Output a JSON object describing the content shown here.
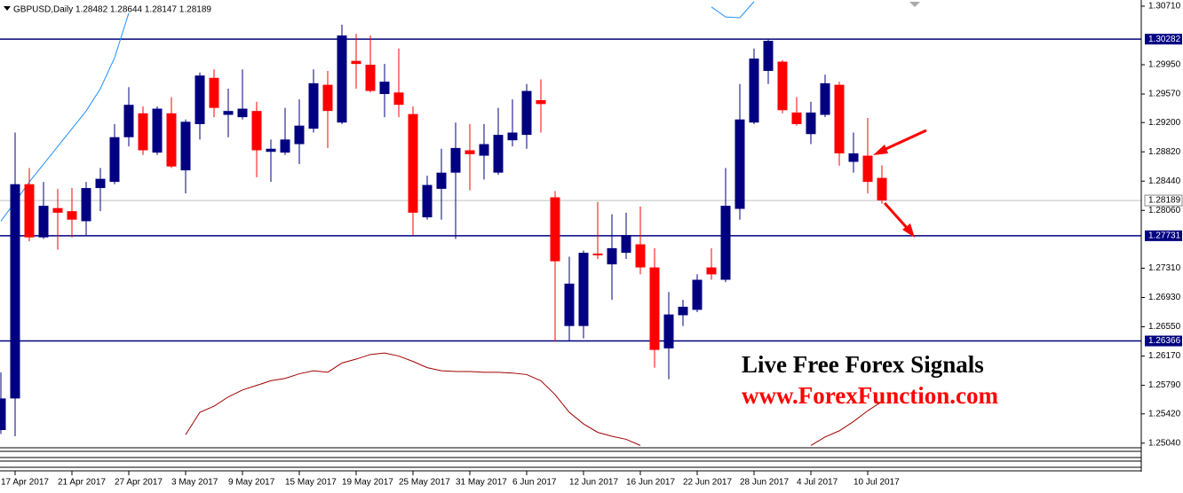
{
  "chart_data": {
    "type": "candlestick",
    "title": "GBPUSD,Daily  1.28482 1.28644 1.28147 1.28189",
    "up_color": "#000080",
    "down_color": "#ff0000",
    "categories": [
      null,
      "17 Apr 2017",
      null,
      null,
      null,
      "21 Apr 2017",
      null,
      null,
      null,
      "27 Apr 2017",
      null,
      null,
      null,
      "3 May 2017",
      null,
      null,
      null,
      "9 May 2017",
      null,
      null,
      null,
      "15 May 2017",
      null,
      null,
      null,
      "19 May 2017",
      null,
      null,
      null,
      "25 May 2017",
      null,
      null,
      null,
      "31 May 2017",
      null,
      null,
      null,
      "6 Jun 2017",
      null,
      null,
      null,
      "12 Jun 2017",
      null,
      null,
      null,
      "16 Jun 2017",
      null,
      null,
      null,
      "22 Jun 2017",
      null,
      null,
      null,
      "28 Jun 2017",
      null,
      null,
      null,
      "4 Jul 2017",
      null,
      null,
      null,
      "10 Jul 2017",
      null
    ],
    "open": [
      1.2521,
      1.2562,
      1.284,
      1.2771,
      1.2809,
      1.2805,
      1.2792,
      1.2835,
      1.2843,
      1.2901,
      1.2932,
      1.2881,
      1.2932,
      1.2858,
      1.2918,
      1.2978,
      1.293,
      1.2927,
      1.2935,
      1.2882,
      1.2881,
      1.2892,
      1.2912,
      1.2969,
      1.292,
      1.3,
      1.2995,
      1.2957,
      1.2959,
      1.2931,
      1.2797,
      1.2834,
      1.2855,
      1.2884,
      1.2877,
      1.2855,
      1.2897,
      1.2904,
      1.2949,
      1.2823,
      1.2656,
      1.2656,
      1.275,
      1.2736,
      1.2751,
      1.2762,
      1.2732,
      1.2627,
      1.267,
      1.2677,
      1.2732,
      1.2716,
      1.2808,
      1.292,
      1.2987,
      1.2999,
      1.2933,
      1.2905,
      1.293,
      1.2969,
      1.2869,
      1.2877,
      1.28482
    ],
    "high": [
      1.2596,
      1.2907,
      1.2861,
      1.2843,
      1.2834,
      1.2835,
      1.2843,
      1.2861,
      1.2918,
      1.2966,
      1.2941,
      1.2941,
      1.2953,
      1.2924,
      1.2985,
      1.2989,
      1.2964,
      1.2989,
      1.2947,
      1.2898,
      1.2939,
      1.295,
      1.2989,
      1.2987,
      1.3047,
      1.3035,
      1.3033,
      1.2996,
      1.3016,
      1.2941,
      1.2851,
      1.2886,
      1.292,
      1.2918,
      1.2918,
      1.2939,
      1.295,
      1.297,
      1.2976,
      1.2831,
      1.2746,
      1.2754,
      1.2817,
      1.2801,
      1.2803,
      1.2811,
      1.2757,
      1.27,
      1.269,
      1.2723,
      1.2757,
      1.2861,
      1.297,
      1.3016,
      1.3028,
      1.3001,
      1.2953,
      1.2947,
      1.2982,
      1.2973,
      1.2907,
      1.2926,
      1.28644
    ],
    "low": [
      1.2516,
      1.2513,
      1.2766,
      1.2769,
      1.2755,
      1.2771,
      1.2774,
      1.2805,
      1.284,
      1.2889,
      1.2878,
      1.2878,
      1.2861,
      1.2828,
      1.2898,
      1.2927,
      1.2901,
      1.2924,
      1.2849,
      1.2843,
      1.2878,
      1.2866,
      1.2907,
      1.2887,
      1.2918,
      1.2964,
      1.2959,
      1.2927,
      1.2927,
      1.2774,
      1.2794,
      1.2794,
      1.2769,
      1.2832,
      1.2846,
      1.2852,
      1.2889,
      1.2886,
      1.2907,
      1.2636,
      1.2636,
      1.264,
      1.2743,
      1.269,
      1.2743,
      1.2723,
      1.2602,
      1.2587,
      1.2656,
      1.2674,
      1.2716,
      1.2713,
      1.2794,
      1.2918,
      1.297,
      1.2932,
      1.2916,
      1.2892,
      1.2927,
      1.2864,
      1.2855,
      1.2828,
      1.28147
    ],
    "close": [
      1.2562,
      1.284,
      1.2771,
      1.2812,
      1.2803,
      1.2794,
      1.2835,
      1.2847,
      1.2901,
      1.2943,
      1.2884,
      1.2938,
      1.2863,
      1.2921,
      1.2981,
      1.2939,
      1.2935,
      1.2938,
      1.2884,
      1.2886,
      1.2898,
      1.2916,
      1.2971,
      1.2935,
      1.3033,
      1.2996,
      1.2961,
      1.2973,
      1.2943,
      1.2803,
      1.2839,
      1.2855,
      1.2887,
      1.2879,
      1.2892,
      1.2904,
      1.2907,
      1.2961,
      1.2944,
      1.274,
      1.2711,
      1.2751,
      1.2748,
      1.2757,
      1.2774,
      1.2732,
      1.2625,
      1.2671,
      1.2681,
      1.2716,
      1.2723,
      1.2812,
      1.2924,
      1.3003,
      1.3026,
      1.2936,
      1.2918,
      1.2933,
      1.2971,
      1.288,
      1.288,
      1.2843,
      1.28189
    ],
    "lines": [
      {
        "color": "#1e90ff",
        "values": [
          1.2792,
          1.2817,
          1.2843,
          1.2866,
          1.2889,
          1.2912,
          1.2935,
          1.2964,
          1.3004,
          1.3062,
          null,
          null,
          null,
          null,
          null,
          null,
          null,
          null,
          null,
          null,
          null,
          null,
          null,
          null,
          null,
          null,
          null,
          null,
          null,
          null,
          null,
          null,
          null,
          null,
          null,
          null,
          null,
          null,
          null,
          null,
          null,
          null,
          null,
          null,
          null,
          null,
          null,
          null,
          null,
          null,
          1.307,
          1.3057,
          1.3056,
          1.3077,
          null,
          null,
          null,
          null,
          null,
          null,
          null,
          null,
          null
        ]
      },
      {
        "color": "#a00000",
        "values": [
          null,
          null,
          null,
          null,
          null,
          null,
          null,
          null,
          null,
          null,
          null,
          null,
          null,
          1.2515,
          1.2544,
          1.2552,
          1.2564,
          1.2573,
          1.2579,
          1.2585,
          1.2588,
          1.2594,
          1.2598,
          1.2596,
          1.2608,
          1.2613,
          1.2619,
          1.2621,
          1.2617,
          1.261,
          1.2602,
          1.2598,
          1.2597,
          1.2597,
          1.2596,
          1.2596,
          1.2595,
          1.2593,
          1.2585,
          1.2567,
          1.2544,
          1.2529,
          1.2518,
          1.2513,
          1.2509,
          1.2501,
          null,
          null,
          null,
          null,
          null,
          null,
          null,
          null,
          null,
          null,
          null,
          1.2501,
          1.2512,
          1.252,
          1.2532,
          1.2546,
          1.2558
        ]
      }
    ],
    "hlines": [
      1.30282,
      1.27731,
      1.26366
    ],
    "hline_color": "#000080",
    "price_line": 1.28189,
    "ylim": [
      1.2498,
      1.3079
    ],
    "yticks": [
      {
        "value": 1.3071,
        "label": "1.30710"
      },
      {
        "value": 1.2995,
        "label": "1.29950"
      },
      {
        "value": 1.2957,
        "label": "1.29570"
      },
      {
        "value": 1.292,
        "label": "1.29200"
      },
      {
        "value": 1.2882,
        "label": "1.28820"
      },
      {
        "value": 1.2844,
        "label": "1.28440"
      },
      {
        "value": 1.2806,
        "label": "1.28060"
      },
      {
        "value": 1.2731,
        "label": "1.27310"
      },
      {
        "value": 1.2693,
        "label": "1.26930"
      },
      {
        "value": 1.2655,
        "label": "1.26550"
      },
      {
        "value": 1.2617,
        "label": "1.26170"
      },
      {
        "value": 1.2579,
        "label": "1.25790"
      },
      {
        "value": 1.2542,
        "label": "1.25420"
      },
      {
        "value": 1.2504,
        "label": "1.25040"
      }
    ],
    "annotations": [
      "Live Free Forex Signals",
      "www.ForexFunction.com"
    ]
  }
}
